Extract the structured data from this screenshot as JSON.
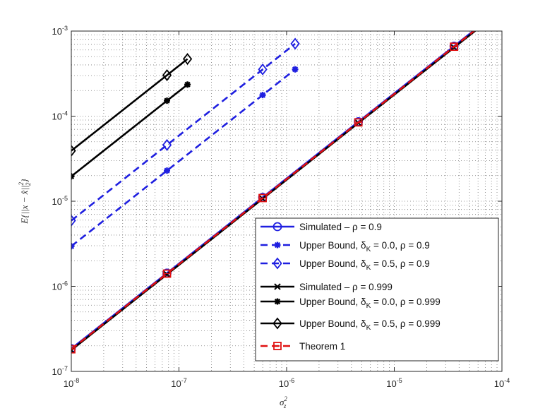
{
  "chart_data": {
    "type": "line",
    "title": "",
    "xlabel": "σ_z^2",
    "ylabel": "E{||x − x̂||_2^2}",
    "x_scale": "log",
    "y_scale": "log",
    "xlim": [
      1e-08,
      0.0001
    ],
    "ylim": [
      1e-07,
      0.001
    ],
    "x_ticks": [
      1e-08,
      1e-07,
      1e-06,
      1e-05,
      0.0001
    ],
    "y_ticks": [
      1e-07,
      1e-06,
      1e-05,
      0.0001,
      0.001
    ],
    "grid": "major and minor, dotted",
    "legend_position": "lower-right",
    "series": [
      {
        "name": "Simulated – ρ = 0.9",
        "color": "#1f1fe0",
        "style": "solid",
        "marker": "circle",
        "x": [
          1e-08,
          7.74e-08,
          5.99e-07,
          4.64e-06,
          3.59e-05,
          0.0001
        ],
        "y": [
          1.85e-07,
          1.43e-06,
          1.11e-05,
          8.6e-05,
          0.000665,
          0.00185
        ]
      },
      {
        "name": "Upper Bound, δK = 0.0, ρ = 0.9",
        "color": "#1f1fe0",
        "style": "dashed",
        "marker": "asterisk",
        "x": [
          1e-08,
          7.74e-08,
          5.99e-07,
          1.2e-06
        ],
        "y": [
          2.96e-06,
          2.29e-05,
          0.000177,
          0.000355
        ]
      },
      {
        "name": "Upper Bound, δK = 0.5, ρ = 0.9",
        "color": "#1f1fe0",
        "style": "dashed",
        "marker": "diamond",
        "x": [
          1e-08,
          7.74e-08,
          5.99e-07,
          1.2e-06
        ],
        "y": [
          5.92e-06,
          4.58e-05,
          0.000354,
          0.00071
        ]
      },
      {
        "name": "Simulated – ρ = 0.999",
        "color": "#000000",
        "style": "solid",
        "marker": "x",
        "x": [
          1e-08,
          7.74e-08,
          5.99e-07,
          4.64e-06,
          3.59e-05,
          0.0001
        ],
        "y": [
          1.78e-07,
          1.38e-06,
          1.07e-05,
          8.3e-05,
          0.00064,
          0.00178
        ]
      },
      {
        "name": "Upper Bound, δK = 0.0, ρ = 0.999",
        "color": "#000000",
        "style": "solid",
        "marker": "asterisk",
        "x": [
          1e-08,
          7.74e-08,
          1.2e-07
        ],
        "y": [
          1.96e-05,
          0.000152,
          0.000235
        ]
      },
      {
        "name": "Upper Bound, δK = 0.5, ρ = 0.999",
        "color": "#000000",
        "style": "solid",
        "marker": "diamond",
        "x": [
          1e-08,
          7.74e-08,
          1.2e-07
        ],
        "y": [
          3.92e-05,
          0.000303,
          0.00047
        ]
      },
      {
        "name": "Theorem 1",
        "color": "#e01010",
        "style": "dashed",
        "marker": "square",
        "x": [
          1e-08,
          7.74e-08,
          5.99e-07,
          4.64e-06,
          3.59e-05,
          0.0001
        ],
        "y": [
          1.82e-07,
          1.41e-06,
          1.09e-05,
          8.45e-05,
          0.000655,
          0.00182
        ]
      }
    ],
    "legend": [
      {
        "lead": "Simulated – ρ = 0.9"
      },
      {
        "lead": "Upper Bound, δ",
        "sub": "K",
        "tail": " = 0.0, ρ = 0.9"
      },
      {
        "lead": "Upper Bound, δ",
        "sub": "K",
        "tail": " = 0.5, ρ = 0.9"
      },
      {
        "lead": "Simulated – ρ = 0.999"
      },
      {
        "lead": "Upper Bound, δ",
        "sub": "K",
        "tail": " = 0.0, ρ = 0.999"
      },
      {
        "lead": "Upper Bound, δ",
        "sub": "K",
        "tail": " = 0.5, ρ = 0.999"
      },
      {
        "lead": "Theorem 1"
      }
    ]
  }
}
